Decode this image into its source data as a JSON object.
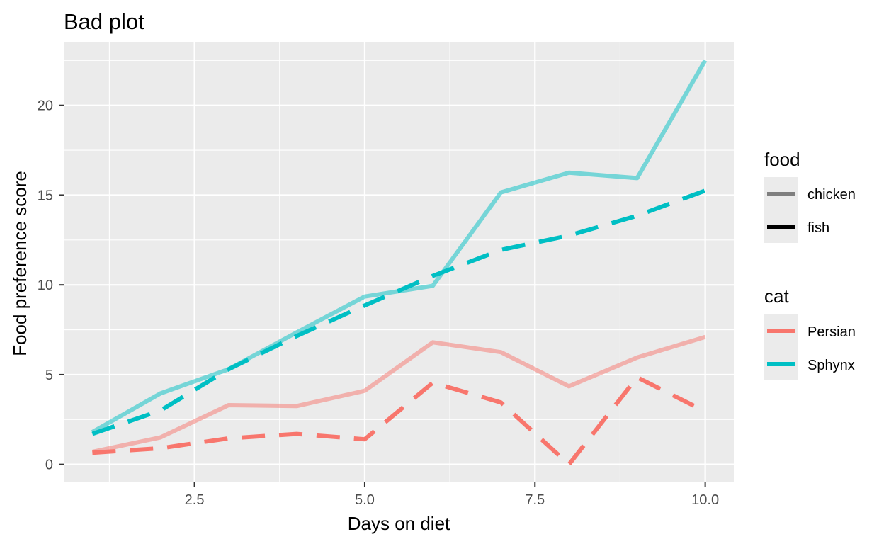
{
  "chart_data": {
    "type": "line",
    "title": "Bad plot",
    "xlabel": "Days on diet",
    "ylabel": "Food preference score",
    "xlim": [
      0.58,
      10.42
    ],
    "ylim": [
      -1.0,
      23.5
    ],
    "x_ticks": [
      2.5,
      5.0,
      7.5,
      10.0
    ],
    "x_tick_labels": [
      "2.5",
      "5.0",
      "7.5",
      "10.0"
    ],
    "y_ticks": [
      0,
      5,
      10,
      15,
      20
    ],
    "y_tick_labels": [
      "0",
      "5",
      "10",
      "15",
      "20"
    ],
    "grid": true,
    "background": "#ebebeb",
    "x": [
      1,
      2,
      3,
      4,
      5,
      6,
      7,
      8,
      9,
      10
    ],
    "series": [
      {
        "cat": "Persian",
        "food": "chicken",
        "color": "#f8766d",
        "opacity": 0.5,
        "dashed": false,
        "values": [
          0.7,
          1.5,
          3.3,
          3.25,
          4.1,
          6.8,
          6.25,
          4.35,
          5.95,
          7.1
        ]
      },
      {
        "cat": "Persian",
        "food": "fish",
        "color": "#f8766d",
        "opacity": 1.0,
        "dashed": true,
        "values": [
          0.65,
          0.9,
          1.45,
          1.7,
          1.4,
          4.55,
          3.45,
          0.0,
          4.85,
          2.95
        ]
      },
      {
        "cat": "Sphynx",
        "food": "chicken",
        "color": "#00bfc4",
        "opacity": 0.5,
        "dashed": false,
        "values": [
          1.8,
          3.95,
          5.3,
          7.35,
          9.35,
          9.95,
          15.15,
          16.25,
          15.95,
          22.5
        ]
      },
      {
        "cat": "Sphynx",
        "food": "fish",
        "color": "#00bfc4",
        "opacity": 1.0,
        "dashed": true,
        "values": [
          1.7,
          3.0,
          5.3,
          7.15,
          8.85,
          10.5,
          11.95,
          12.75,
          13.85,
          15.25
        ]
      }
    ],
    "legends": [
      {
        "title": "food",
        "position": "right",
        "items": [
          {
            "label": "chicken",
            "color": "#7f7f7f"
          },
          {
            "label": "fish",
            "color": "#000000"
          }
        ]
      },
      {
        "title": "cat",
        "position": "right",
        "items": [
          {
            "label": "Persian",
            "color": "#f8766d"
          },
          {
            "label": "Sphynx",
            "color": "#00bfc4"
          }
        ]
      }
    ]
  }
}
